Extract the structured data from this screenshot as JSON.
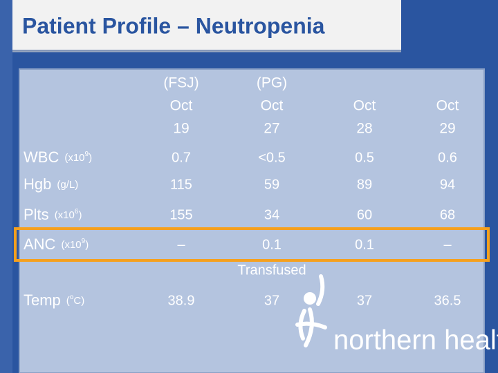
{
  "header": {
    "title": "Patient Profile – Neutropenia"
  },
  "table": {
    "columns": [
      [
        "(FSJ)",
        "Oct",
        "19"
      ],
      [
        "(PG)",
        "Oct",
        "27"
      ],
      [
        "Oct",
        "28"
      ],
      [
        "Oct",
        "29"
      ]
    ],
    "rows": [
      {
        "label": "WBC",
        "unit": [
          "(x10",
          "9",
          ")"
        ],
        "cells": [
          "0.7",
          "<0.5",
          "0.5",
          "0.6"
        ]
      },
      {
        "label": "Hgb",
        "unit": [
          "(g/L)"
        ],
        "cells": [
          "115",
          "59",
          "89",
          "94"
        ]
      },
      {
        "label": "Plts",
        "unit": [
          "(x10",
          "6",
          ")"
        ],
        "cells": [
          "155",
          "34",
          "60",
          "68"
        ]
      },
      {
        "label": "ANC",
        "unit": [
          "(x10",
          "9",
          ")"
        ],
        "cells": [
          "–",
          "0.1",
          "0.1",
          "–"
        ]
      },
      {
        "label": "Temp",
        "unit": [
          "(",
          "o",
          "C)"
        ],
        "cells": [
          "38.9",
          "37",
          "37",
          "36.5"
        ]
      }
    ],
    "note": "Transfused"
  },
  "logo": {
    "text": "northern health"
  }
}
